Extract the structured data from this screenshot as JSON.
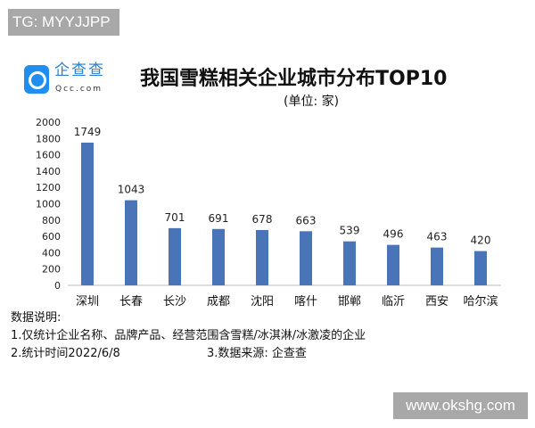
{
  "watermarks": {
    "top_left": "TG: MYYJJPP",
    "bottom_right": "www.okshg.com"
  },
  "logo": {
    "name": "企查查",
    "url": "Qcc.com"
  },
  "chart_data": {
    "type": "bar",
    "title": "我国雪糕相关企业城市分布TOP10",
    "subtitle": "(单位: 家)",
    "categories": [
      "深圳",
      "长春",
      "长沙",
      "成都",
      "沈阳",
      "喀什",
      "邯郸",
      "临沂",
      "西安",
      "哈尔滨"
    ],
    "values": [
      1749,
      1043,
      701,
      691,
      678,
      663,
      539,
      496,
      463,
      420
    ],
    "ylim": [
      0,
      2000
    ],
    "yticks": [
      0,
      200,
      400,
      600,
      800,
      1000,
      1200,
      1400,
      1600,
      1800,
      2000
    ],
    "grid": false,
    "bar_color": "#4a74b8"
  },
  "notes": {
    "heading": "数据说明:",
    "line1": "1.仅统计企业名称、品牌产品、经营范围含雪糕/冰淇淋/冰激凌的企业",
    "line2a": "2.统计时间2022/6/8",
    "line2b": "3.数据来源: 企查查"
  }
}
